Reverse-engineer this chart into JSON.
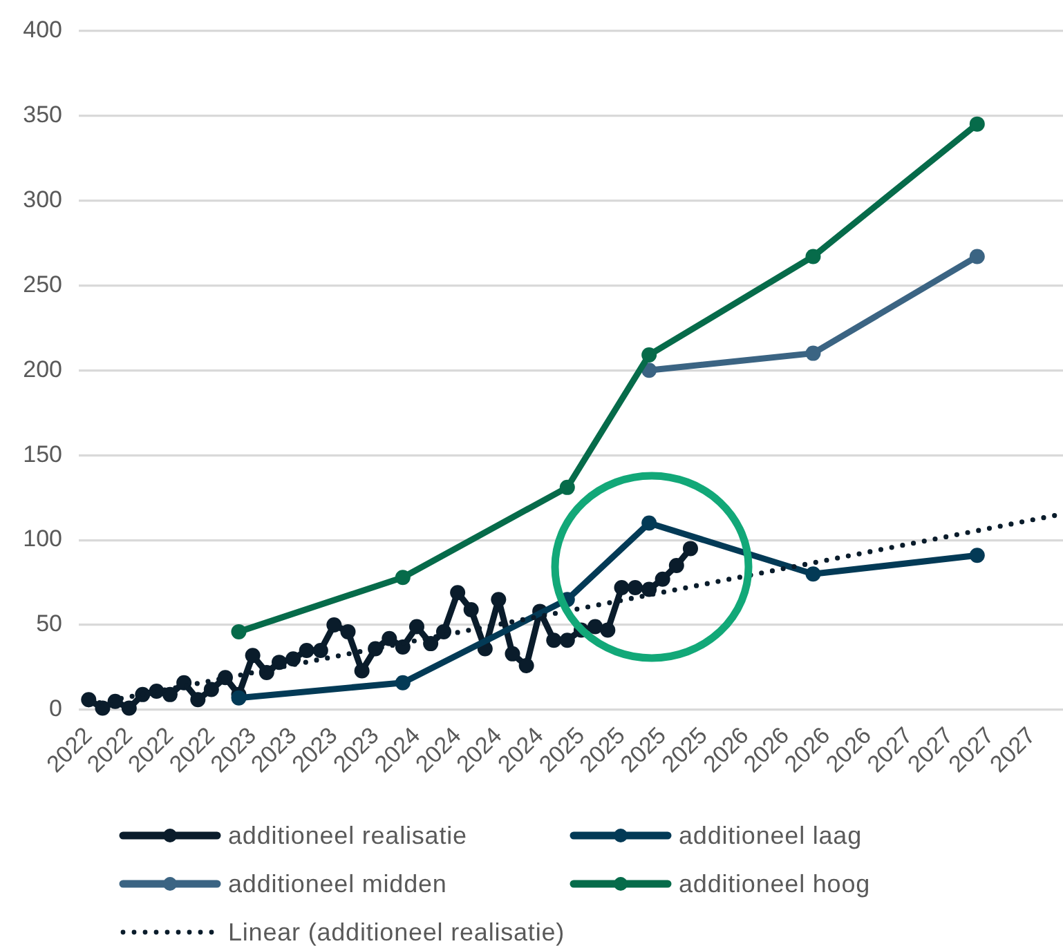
{
  "chart_data": {
    "type": "line",
    "marker": "circle",
    "grid": "y",
    "legend": "bottom",
    "xlim": [
      "2021-12-10",
      "2027-12-09"
    ],
    "xticks": [
      {
        "value": "2022-01",
        "label": "2022"
      },
      {
        "value": "2022-04",
        "label": "2022"
      },
      {
        "value": "2022-07",
        "label": "2022"
      },
      {
        "value": "2022-10",
        "label": "2022"
      },
      {
        "value": "2023-01",
        "label": "2023"
      },
      {
        "value": "2023-04",
        "label": "2023"
      },
      {
        "value": "2023-07",
        "label": "2023"
      },
      {
        "value": "2023-10",
        "label": "2023"
      },
      {
        "value": "2024-01",
        "label": "2024"
      },
      {
        "value": "2024-04",
        "label": "2024"
      },
      {
        "value": "2024-07",
        "label": "2024"
      },
      {
        "value": "2024-10",
        "label": "2024"
      },
      {
        "value": "2025-01",
        "label": "2025"
      },
      {
        "value": "2025-04",
        "label": "2025"
      },
      {
        "value": "2025-07",
        "label": "2025"
      },
      {
        "value": "2025-10",
        "label": "2025"
      },
      {
        "value": "2026-01",
        "label": "2026"
      },
      {
        "value": "2026-04",
        "label": "2026"
      },
      {
        "value": "2026-07",
        "label": "2026"
      },
      {
        "value": "2026-10",
        "label": "2026"
      },
      {
        "value": "2027-01",
        "label": "2027"
      },
      {
        "value": "2027-04",
        "label": "2027"
      },
      {
        "value": "2027-07",
        "label": "2027"
      },
      {
        "value": "2027-10",
        "label": "2027"
      }
    ],
    "ylim": [
      0,
      400
    ],
    "yticks": [
      0,
      50,
      100,
      150,
      200,
      250,
      300,
      350,
      400
    ],
    "series": [
      {
        "name": "additioneel realisatie",
        "color": "#0a1c2b",
        "x": [
          "2022-01",
          "2022-02",
          "2022-03",
          "2022-04",
          "2022-05",
          "2022-06",
          "2022-07",
          "2022-08",
          "2022-09",
          "2022-10",
          "2022-11",
          "2022-12",
          "2023-01",
          "2023-02",
          "2023-03",
          "2023-04",
          "2023-05",
          "2023-06",
          "2023-07",
          "2023-08",
          "2023-09",
          "2023-10",
          "2023-11",
          "2023-12",
          "2024-01",
          "2024-02",
          "2024-03",
          "2024-04",
          "2024-05",
          "2024-06",
          "2024-07",
          "2024-08",
          "2024-09",
          "2024-10",
          "2024-11",
          "2024-12",
          "2025-01",
          "2025-02",
          "2025-03",
          "2025-04",
          "2025-05",
          "2025-06",
          "2025-07",
          "2025-08",
          "2025-09"
        ],
        "values": [
          6,
          1,
          5,
          1,
          9,
          11,
          9,
          16,
          6,
          12,
          19,
          9,
          32,
          22,
          28,
          30,
          35,
          35,
          50,
          46,
          23,
          36,
          42,
          37,
          49,
          39,
          46,
          69,
          59,
          36,
          65,
          33,
          26,
          58,
          41,
          41,
          47,
          49,
          47,
          72,
          72,
          71,
          77,
          85,
          95
        ]
      },
      {
        "name": "additioneel laag",
        "color": "#033a56",
        "x": [
          "2022-12",
          "2023-12",
          "2024-12",
          "2025-06",
          "2026-06",
          "2027-06"
        ],
        "values": [
          7,
          16,
          65,
          110,
          80,
          91
        ]
      },
      {
        "name": "additioneel midden",
        "color": "#3b6483",
        "x": [
          "2025-06",
          "2026-06",
          "2027-06"
        ],
        "values": [
          200,
          210,
          267
        ]
      },
      {
        "name": "additioneel hoog",
        "color": "#066b4a",
        "x": [
          "2022-12",
          "2023-12",
          "2024-12",
          "2025-06",
          "2026-06",
          "2027-06"
        ],
        "values": [
          46,
          78,
          131,
          209,
          267,
          345
        ]
      },
      {
        "name": "Linear (additioneel realisatie)",
        "color": "#0a1c2b",
        "type": "line",
        "marker": "none",
        "line_style": "dotted",
        "x": [
          "2022-01",
          "2027-12"
        ],
        "values": [
          3,
          115
        ]
      }
    ]
  }
}
